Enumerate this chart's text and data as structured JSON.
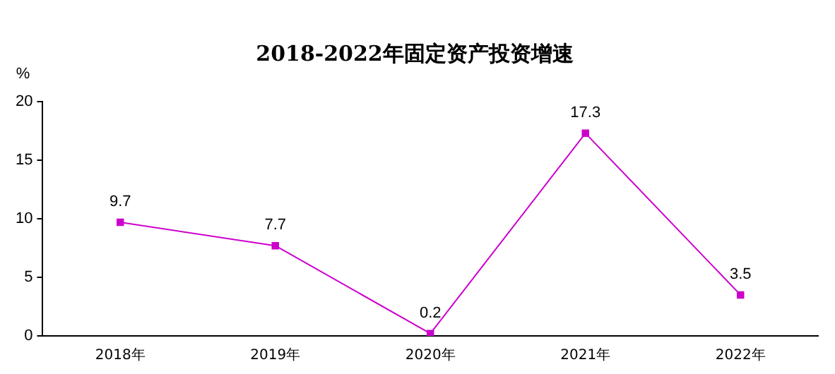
{
  "chart_data": {
    "type": "line",
    "title": "2018-2022年固定资产投资增速",
    "ylabel": "%",
    "categories": [
      "2018年",
      "2019年",
      "2020年",
      "2021年",
      "2022年"
    ],
    "series": [
      {
        "color": "#cc00cc",
        "values": [
          9.7,
          7.7,
          0.2,
          17.3,
          3.5
        ]
      }
    ],
    "ylim": [
      0,
      20
    ],
    "yticks": [
      0,
      5,
      10,
      15,
      20
    ],
    "grid": false,
    "legend": false,
    "marker": "square",
    "line_style": "solid",
    "data_labels": true
  }
}
